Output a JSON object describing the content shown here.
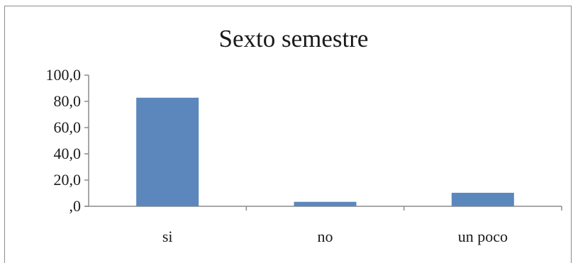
{
  "chart_data": {
    "type": "bar",
    "title": "Sexto semestre",
    "categories": [
      "si",
      "no",
      "un poco"
    ],
    "values": [
      82.8,
      3.4,
      10.3
    ],
    "ylim": [
      0,
      100
    ],
    "yticks": [
      "100,0",
      "80,0",
      "60,0",
      "40,0",
      "20,0",
      ",0"
    ],
    "ytick_values": [
      100,
      80,
      60,
      40,
      20,
      0
    ],
    "grid": false,
    "legend": "none",
    "bar_color": "#5b87bd",
    "axis_color": "#8c8c8c"
  }
}
